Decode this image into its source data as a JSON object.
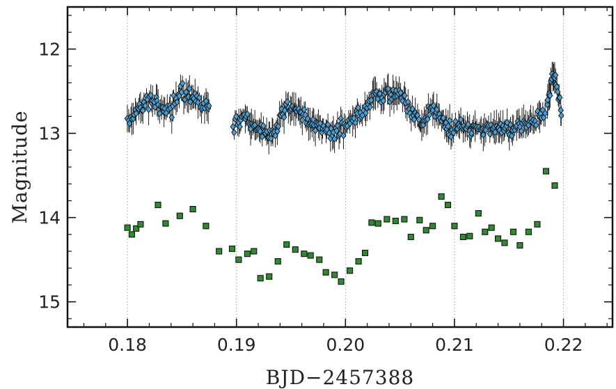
{
  "chart_data": {
    "type": "scatter",
    "title": "",
    "xlabel": "BJD−2457388",
    "ylabel": "Magnitude",
    "xlim": [
      0.1745,
      0.2245
    ],
    "ylim": [
      15.3,
      11.5
    ],
    "y_inverted": true,
    "xticks": [
      0.18,
      0.19,
      0.2,
      0.21,
      0.22
    ],
    "xtick_labels": [
      "0.18",
      "0.19",
      "0.20",
      "0.21",
      "0.22"
    ],
    "yticks": [
      12,
      13,
      14,
      15
    ],
    "ytick_labels": [
      "12",
      "13",
      "14",
      "15"
    ],
    "x_minor_step": 0.002,
    "y_minor_step": 0.2,
    "grid": "vertical dotted at major x ticks",
    "legend": "none",
    "series": [
      {
        "marker": "diamond",
        "color": "#4a9fd4",
        "edgecolor": "#111111",
        "error_bars": true,
        "segments": [
          {
            "x_start": 0.18,
            "x_end": 0.1875,
            "count": 75,
            "knots": [
              [
                0.18,
                12.85
              ],
              [
                0.1808,
                12.75
              ],
              [
                0.182,
                12.6
              ],
              [
                0.183,
                12.65
              ],
              [
                0.184,
                12.72
              ],
              [
                0.185,
                12.5
              ],
              [
                0.186,
                12.55
              ],
              [
                0.1868,
                12.65
              ],
              [
                0.1875,
                12.65
              ]
            ]
          },
          {
            "x_start": 0.1897,
            "x_end": 0.2183,
            "count": 290,
            "knots": [
              [
                0.1897,
                12.88
              ],
              [
                0.191,
                12.82
              ],
              [
                0.1925,
                13.02
              ],
              [
                0.1935,
                12.95
              ],
              [
                0.1945,
                12.7
              ],
              [
                0.1955,
                12.72
              ],
              [
                0.1965,
                12.82
              ],
              [
                0.1975,
                12.95
              ],
              [
                0.199,
                13.0
              ],
              [
                0.2,
                12.9
              ],
              [
                0.201,
                12.8
              ],
              [
                0.202,
                12.65
              ],
              [
                0.203,
                12.52
              ],
              [
                0.204,
                12.55
              ],
              [
                0.205,
                12.55
              ],
              [
                0.206,
                12.72
              ],
              [
                0.207,
                12.88
              ],
              [
                0.208,
                12.7
              ],
              [
                0.2088,
                12.85
              ],
              [
                0.2098,
                12.95
              ],
              [
                0.211,
                12.95
              ],
              [
                0.213,
                12.92
              ],
              [
                0.215,
                12.93
              ],
              [
                0.217,
                12.85
              ],
              [
                0.2183,
                12.78
              ]
            ]
          },
          {
            "x_start": 0.2185,
            "x_end": 0.2198,
            "count": 20,
            "knots": [
              [
                0.2185,
                12.68
              ],
              [
                0.2188,
                12.45
              ],
              [
                0.219,
                12.25
              ],
              [
                0.2192,
                12.32
              ],
              [
                0.2194,
                12.45
              ],
              [
                0.2196,
                12.62
              ],
              [
                0.2198,
                12.75
              ]
            ]
          }
        ]
      },
      {
        "marker": "square",
        "color": "#2e8b2e",
        "edgecolor": "#111111",
        "points": [
          [
            0.18,
            14.12
          ],
          [
            0.1804,
            14.2
          ],
          [
            0.1808,
            14.13
          ],
          [
            0.1812,
            14.08
          ],
          [
            0.1828,
            13.85
          ],
          [
            0.1835,
            14.07
          ],
          [
            0.1848,
            13.98
          ],
          [
            0.186,
            13.9
          ],
          [
            0.1872,
            14.1
          ],
          [
            0.1884,
            14.4
          ],
          [
            0.1896,
            14.37
          ],
          [
            0.1902,
            14.5
          ],
          [
            0.191,
            14.43
          ],
          [
            0.1916,
            14.4
          ],
          [
            0.1922,
            14.72
          ],
          [
            0.193,
            14.7
          ],
          [
            0.1938,
            14.52
          ],
          [
            0.1946,
            14.32
          ],
          [
            0.1954,
            14.38
          ],
          [
            0.1962,
            14.43
          ],
          [
            0.1968,
            14.45
          ],
          [
            0.1976,
            14.5
          ],
          [
            0.1982,
            14.65
          ],
          [
            0.199,
            14.68
          ],
          [
            0.1996,
            14.76
          ],
          [
            0.2004,
            14.63
          ],
          [
            0.2012,
            14.52
          ],
          [
            0.2018,
            14.42
          ],
          [
            0.2024,
            14.06
          ],
          [
            0.203,
            14.07
          ],
          [
            0.2038,
            14.02
          ],
          [
            0.2046,
            14.04
          ],
          [
            0.2054,
            14.02
          ],
          [
            0.206,
            14.23
          ],
          [
            0.2068,
            14.03
          ],
          [
            0.2074,
            14.15
          ],
          [
            0.208,
            14.1
          ],
          [
            0.2088,
            13.75
          ],
          [
            0.2094,
            13.85
          ],
          [
            0.21,
            14.1
          ],
          [
            0.2108,
            14.23
          ],
          [
            0.2114,
            14.22
          ],
          [
            0.2122,
            13.95
          ],
          [
            0.2128,
            14.17
          ],
          [
            0.2134,
            14.12
          ],
          [
            0.214,
            14.25
          ],
          [
            0.2146,
            14.3
          ],
          [
            0.2154,
            14.17
          ],
          [
            0.216,
            14.33
          ],
          [
            0.2168,
            14.17
          ],
          [
            0.2176,
            14.08
          ],
          [
            0.2184,
            13.45
          ],
          [
            0.2192,
            13.62
          ]
        ]
      }
    ]
  }
}
